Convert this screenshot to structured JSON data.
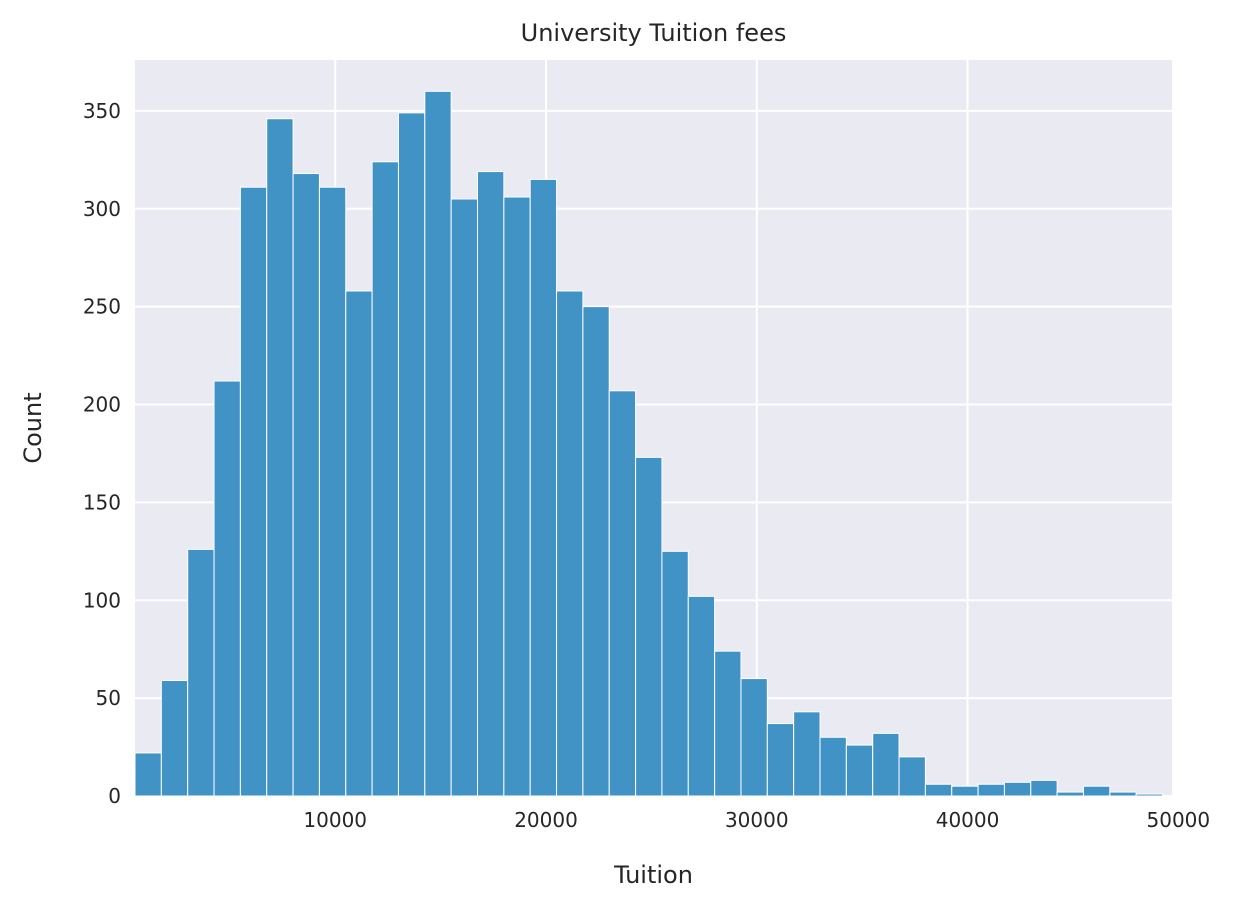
{
  "chart_data": {
    "type": "bar",
    "title": "University Tuition fees",
    "xlabel": "Tuition",
    "ylabel": "Count",
    "xlim": [
      500,
      49700
    ],
    "ylim": [
      0,
      376
    ],
    "xticks": [
      "10000",
      "20000",
      "30000",
      "40000",
      "50000"
    ],
    "yticks": [
      "0",
      "50",
      "100",
      "150",
      "200",
      "250",
      "300",
      "350"
    ],
    "bin_start": 500,
    "bin_width": 1250,
    "values": [
      22,
      59,
      126,
      212,
      311,
      346,
      318,
      311,
      258,
      324,
      349,
      360,
      305,
      319,
      306,
      315,
      258,
      250,
      207,
      173,
      125,
      102,
      74,
      60,
      37,
      43,
      30,
      26,
      32,
      20,
      6,
      5,
      6,
      7,
      8,
      2,
      5,
      2,
      1
    ],
    "bar_color": "#3c8fc3",
    "background": "#eaeaf2",
    "grid": true
  }
}
